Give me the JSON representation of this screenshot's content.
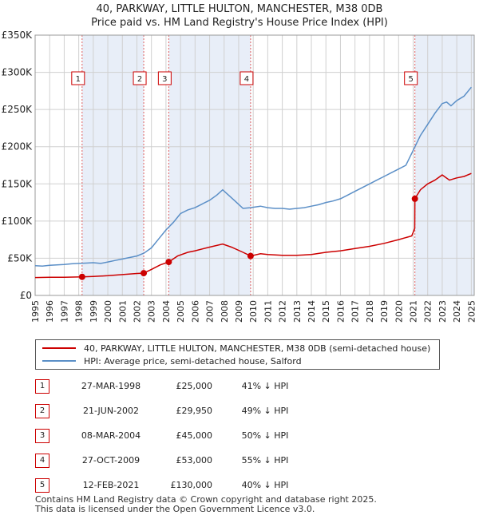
{
  "title": {
    "line1": "40, PARKWAY, LITTLE HULTON, MANCHESTER, M38 0DB",
    "line2": "Price paid vs. HM Land Registry's House Price Index (HPI)"
  },
  "legend": {
    "property": "40, PARKWAY, LITTLE HULTON, MANCHESTER, M38 0DB (semi-detached house)",
    "hpi": "HPI: Average price, semi-detached house, Salford"
  },
  "colors": {
    "property": "#cc0000",
    "hpi": "#5b8fc7",
    "shade": "#e8eef8",
    "grid": "#d0d0d0",
    "vline": "#e06060"
  },
  "chart_data": {
    "type": "line",
    "ylabel": "",
    "xlabel": "",
    "ylim": [
      0,
      350000
    ],
    "xlim": [
      1995.0,
      2025.2
    ],
    "yticks": [
      {
        "value": 0,
        "label": "£0"
      },
      {
        "value": 50000,
        "label": "£50K"
      },
      {
        "value": 100000,
        "label": "£100K"
      },
      {
        "value": 150000,
        "label": "£150K"
      },
      {
        "value": 200000,
        "label": "£200K"
      },
      {
        "value": 250000,
        "label": "£250K"
      },
      {
        "value": 300000,
        "label": "£300K"
      },
      {
        "value": 350000,
        "label": "£350K"
      }
    ],
    "xticks": [
      "1995",
      "1996",
      "1997",
      "1998",
      "1999",
      "2000",
      "2001",
      "2002",
      "2003",
      "2004",
      "2005",
      "2006",
      "2007",
      "2008",
      "2009",
      "2010",
      "2011",
      "2012",
      "2013",
      "2014",
      "2015",
      "2016",
      "2017",
      "2018",
      "2019",
      "2020",
      "2021",
      "2022",
      "2023",
      "2024",
      "2025"
    ],
    "grid": true,
    "shaded_periods": [
      [
        1998.23,
        2002.47
      ],
      [
        2004.19,
        2009.82
      ],
      [
        2021.12,
        2025.2
      ]
    ],
    "series": [
      {
        "name": "HPI: Average price, semi-detached house, Salford",
        "color": "#5b8fc7",
        "points": [
          [
            1995.0,
            40000
          ],
          [
            1995.5,
            39500
          ],
          [
            1996.0,
            40500
          ],
          [
            1996.5,
            41000
          ],
          [
            1997.0,
            41500
          ],
          [
            1997.5,
            42500
          ],
          [
            1998.0,
            43000
          ],
          [
            1998.5,
            43500
          ],
          [
            1999.0,
            44000
          ],
          [
            1999.5,
            43000
          ],
          [
            2000.0,
            45000
          ],
          [
            2000.5,
            47000
          ],
          [
            2001.0,
            49000
          ],
          [
            2001.5,
            51000
          ],
          [
            2002.0,
            53000
          ],
          [
            2002.5,
            57000
          ],
          [
            2003.0,
            64000
          ],
          [
            2003.5,
            76000
          ],
          [
            2004.0,
            88000
          ],
          [
            2004.5,
            98000
          ],
          [
            2005.0,
            110000
          ],
          [
            2005.5,
            115000
          ],
          [
            2006.0,
            118000
          ],
          [
            2006.5,
            123000
          ],
          [
            2007.0,
            128000
          ],
          [
            2007.5,
            135000
          ],
          [
            2007.9,
            142000
          ],
          [
            2008.3,
            135000
          ],
          [
            2008.8,
            126000
          ],
          [
            2009.3,
            117000
          ],
          [
            2009.8,
            118000
          ],
          [
            2010.5,
            120000
          ],
          [
            2011.0,
            118000
          ],
          [
            2011.5,
            117000
          ],
          [
            2012.0,
            117000
          ],
          [
            2012.5,
            116000
          ],
          [
            2013.0,
            117000
          ],
          [
            2013.5,
            118000
          ],
          [
            2014.0,
            120000
          ],
          [
            2014.5,
            122000
          ],
          [
            2015.0,
            125000
          ],
          [
            2015.5,
            127000
          ],
          [
            2016.0,
            130000
          ],
          [
            2016.5,
            135000
          ],
          [
            2017.0,
            140000
          ],
          [
            2017.5,
            145000
          ],
          [
            2018.0,
            150000
          ],
          [
            2018.5,
            155000
          ],
          [
            2019.0,
            160000
          ],
          [
            2019.5,
            165000
          ],
          [
            2020.0,
            170000
          ],
          [
            2020.5,
            175000
          ],
          [
            2021.0,
            195000
          ],
          [
            2021.5,
            215000
          ],
          [
            2022.0,
            230000
          ],
          [
            2022.5,
            245000
          ],
          [
            2023.0,
            258000
          ],
          [
            2023.3,
            260000
          ],
          [
            2023.6,
            255000
          ],
          [
            2024.0,
            262000
          ],
          [
            2024.5,
            268000
          ],
          [
            2025.0,
            280000
          ]
        ]
      },
      {
        "name": "40, PARKWAY, LITTLE HULTON, MANCHESTER, M38 0DB (semi-detached house)",
        "color": "#cc0000",
        "points": [
          [
            1995.0,
            24000
          ],
          [
            1996.0,
            24500
          ],
          [
            1997.0,
            24500
          ],
          [
            1998.23,
            25000
          ],
          [
            1999.0,
            25500
          ],
          [
            2000.0,
            26500
          ],
          [
            2001.0,
            28000
          ],
          [
            2002.0,
            29500
          ],
          [
            2002.47,
            29950
          ],
          [
            2003.0,
            35000
          ],
          [
            2003.6,
            41000
          ],
          [
            2004.19,
            45000
          ],
          [
            2004.8,
            53000
          ],
          [
            2005.5,
            58000
          ],
          [
            2006.0,
            60000
          ],
          [
            2007.0,
            65000
          ],
          [
            2007.9,
            69000
          ],
          [
            2008.5,
            65000
          ],
          [
            2009.3,
            58000
          ],
          [
            2009.82,
            53000
          ],
          [
            2010.5,
            56000
          ],
          [
            2011.0,
            55000
          ],
          [
            2012.0,
            54000
          ],
          [
            2013.0,
            54000
          ],
          [
            2014.0,
            55000
          ],
          [
            2015.0,
            58000
          ],
          [
            2016.0,
            60000
          ],
          [
            2017.0,
            63000
          ],
          [
            2018.0,
            66000
          ],
          [
            2019.0,
            70000
          ],
          [
            2020.0,
            75000
          ],
          [
            2020.9,
            80000
          ],
          [
            2021.11,
            90000
          ],
          [
            2021.12,
            130000
          ],
          [
            2021.5,
            142000
          ],
          [
            2022.0,
            150000
          ],
          [
            2022.5,
            155000
          ],
          [
            2023.0,
            162000
          ],
          [
            2023.5,
            155000
          ],
          [
            2024.0,
            158000
          ],
          [
            2024.5,
            160000
          ],
          [
            2025.0,
            164000
          ]
        ]
      }
    ],
    "sales": [
      {
        "id": "1",
        "x": 1998.23,
        "price": 25000
      },
      {
        "id": "2",
        "x": 2002.47,
        "price": 29950
      },
      {
        "id": "3",
        "x": 2004.19,
        "price": 45000
      },
      {
        "id": "4",
        "x": 2009.82,
        "price": 53000
      },
      {
        "id": "5",
        "x": 2021.12,
        "price": 130000
      }
    ]
  },
  "sales_table": [
    {
      "num": "1",
      "date": "27-MAR-1998",
      "price": "£25,000",
      "hpi": "41% ↓ HPI"
    },
    {
      "num": "2",
      "date": "21-JUN-2002",
      "price": "£29,950",
      "hpi": "49% ↓ HPI"
    },
    {
      "num": "3",
      "date": "08-MAR-2004",
      "price": "£45,000",
      "hpi": "50% ↓ HPI"
    },
    {
      "num": "4",
      "date": "27-OCT-2009",
      "price": "£53,000",
      "hpi": "55% ↓ HPI"
    },
    {
      "num": "5",
      "date": "12-FEB-2021",
      "price": "£130,000",
      "hpi": "40% ↓ HPI"
    }
  ],
  "footer": {
    "line1": "Contains HM Land Registry data © Crown copyright and database right 2025.",
    "line2": "This data is licensed under the Open Government Licence v3.0."
  }
}
